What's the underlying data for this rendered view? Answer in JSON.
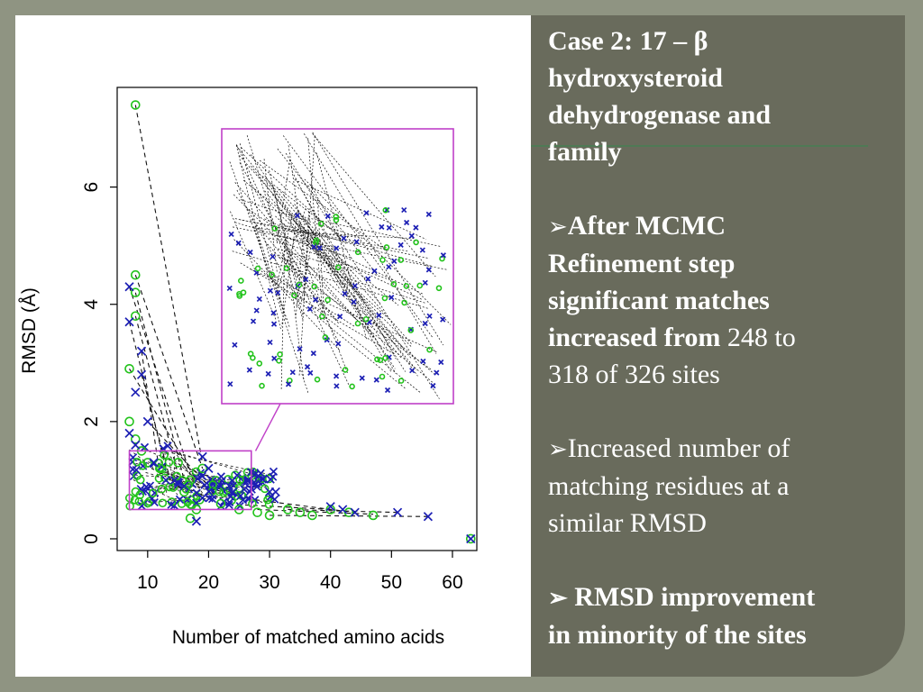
{
  "slide": {
    "title_lines": [
      "Case 2: 17 – β",
      "hydroxysteroid",
      "dehydrogenase and",
      "family"
    ],
    "bullets": [
      {
        "marker": "➢",
        "bold_lines": [
          "After MCMC",
          "Refinement step",
          "significant matches",
          "increased from"
        ],
        "normal_tail": "248 to",
        "normal_lines": [
          "318 of 326 sites"
        ]
      },
      {
        "marker": "➢",
        "normal_lines": [
          "Increased number of",
          "matching residues at a",
          "similar RMSD"
        ]
      },
      {
        "marker": "➢",
        "bold_lines": [
          "RMSD improvement",
          "in minority of the sites"
        ]
      }
    ]
  },
  "colors": {
    "slide_background": "#696b5c",
    "page_background": "#8f9482",
    "green_marker": "#22c31b",
    "blue_marker": "#1c1fb4",
    "inset_frame": "#c040c8"
  },
  "chart_data": {
    "type": "scatter",
    "xlabel": "Number of matched amino acids",
    "ylabel": "RMSD (Å)",
    "xlim": [
      5,
      64
    ],
    "ylim": [
      -0.2,
      7.7
    ],
    "xticks": [
      "10",
      "20",
      "30",
      "40",
      "50",
      "60"
    ],
    "yticks": [
      "0",
      "2",
      "4",
      "6"
    ],
    "series": [
      {
        "marker": "circle",
        "color": "green",
        "points": [
          [
            8,
            7.4
          ],
          [
            8,
            4.5
          ],
          [
            8,
            4.2
          ],
          [
            8,
            3.8
          ],
          [
            7,
            2.9
          ],
          [
            7,
            2.0
          ],
          [
            8,
            1.7
          ],
          [
            9,
            1.5
          ],
          [
            10,
            1.3
          ],
          [
            12,
            1.2
          ],
          [
            15,
            1.3
          ],
          [
            17,
            1.0
          ],
          [
            19,
            1.2
          ],
          [
            16,
            0.8
          ],
          [
            18,
            0.5
          ],
          [
            17,
            0.35
          ],
          [
            22,
            0.6
          ],
          [
            25,
            0.5
          ],
          [
            28,
            0.45
          ],
          [
            30,
            0.4
          ],
          [
            33,
            0.5
          ],
          [
            35,
            0.45
          ],
          [
            37,
            0.4
          ],
          [
            40,
            0.5
          ],
          [
            43,
            0.45
          ],
          [
            47,
            0.4
          ],
          [
            63,
            0.0
          ]
        ]
      },
      {
        "marker": "x",
        "color": "blue",
        "points": [
          [
            7,
            4.3
          ],
          [
            7,
            3.7
          ],
          [
            9,
            3.2
          ],
          [
            9,
            2.8
          ],
          [
            8,
            2.5
          ],
          [
            10,
            2.0
          ],
          [
            7,
            1.8
          ],
          [
            8,
            1.6
          ],
          [
            11,
            1.3
          ],
          [
            13,
            1.0
          ],
          [
            16,
            0.9
          ],
          [
            19,
            1.4
          ],
          [
            20,
            1.2
          ],
          [
            22,
            0.9
          ],
          [
            24,
            0.8
          ],
          [
            27,
            0.85
          ],
          [
            30,
            0.8
          ],
          [
            31,
            0.8
          ],
          [
            18,
            0.3
          ],
          [
            40,
            0.55
          ],
          [
            42,
            0.5
          ],
          [
            44,
            0.45
          ],
          [
            51,
            0.45
          ],
          [
            56,
            0.38
          ],
          [
            63,
            0.0
          ]
        ]
      }
    ],
    "lines": [
      [
        [
          8,
          7.4
        ],
        [
          19,
          1.3
        ]
      ],
      [
        [
          8,
          4.5
        ],
        [
          19,
          1.2
        ]
      ],
      [
        [
          8,
          4.2
        ],
        [
          16,
          1.0
        ]
      ],
      [
        [
          8,
          3.8
        ],
        [
          15,
          1.1
        ]
      ],
      [
        [
          7,
          4.3
        ],
        [
          17,
          1.1
        ]
      ],
      [
        [
          7,
          3.7
        ],
        [
          13,
          1.2
        ]
      ],
      [
        [
          9,
          3.2
        ],
        [
          12,
          1.1
        ]
      ],
      [
        [
          9,
          2.8
        ],
        [
          14,
          0.9
        ]
      ],
      [
        [
          7,
          2.9
        ],
        [
          18,
          1.0
        ]
      ],
      [
        [
          10,
          2.0
        ],
        [
          20,
          0.9
        ]
      ],
      [
        [
          30,
          0.4
        ],
        [
          56,
          0.38
        ]
      ],
      [
        [
          33,
          0.5
        ],
        [
          51,
          0.45
        ]
      ],
      [
        [
          28,
          0.5
        ],
        [
          47,
          0.42
        ]
      ],
      [
        [
          22,
          0.6
        ],
        [
          40,
          0.5
        ]
      ],
      [
        [
          25,
          0.7
        ],
        [
          44,
          0.45
        ]
      ]
    ],
    "zoom_box": {
      "x_range": [
        7,
        27
      ],
      "y_range": [
        0.5,
        1.5
      ]
    },
    "inset": "magnified view of the zoom box"
  }
}
